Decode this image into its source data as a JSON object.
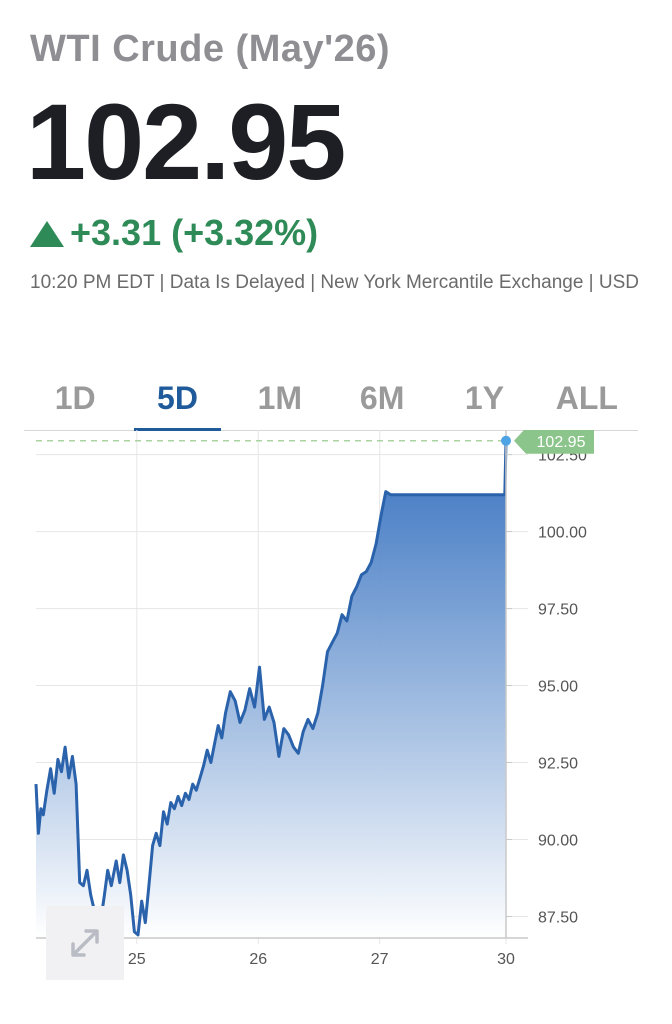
{
  "header": {
    "title": "WTI Crude (May'26)",
    "price": "102.95",
    "change": "+3.31",
    "change_pct": "(+3.32%)",
    "meta": "10:20 PM EDT | Data Is Delayed | New York Mercantile Exchange | USD"
  },
  "tabs": [
    {
      "label": "1D",
      "active": false
    },
    {
      "label": "5D",
      "active": true
    },
    {
      "label": "1M",
      "active": false
    },
    {
      "label": "6M",
      "active": false
    },
    {
      "label": "1Y",
      "active": false
    },
    {
      "label": "ALL",
      "active": false
    }
  ],
  "chart_data": {
    "type": "area",
    "last_price_label": "102.95",
    "ylim": [
      86.8,
      103.3
    ],
    "yticks": [
      87.5,
      90.0,
      92.5,
      95.0,
      97.5,
      100.0,
      102.5
    ],
    "ytick_labels": [
      "87.50",
      "90.00",
      "92.50",
      "95.00",
      "97.50",
      "100.00",
      "102.50"
    ],
    "xticks": [
      {
        "x": 0.83,
        "label": "25"
      },
      {
        "x": 1.83,
        "label": "26"
      },
      {
        "x": 2.83,
        "label": "27"
      },
      {
        "x": 3.87,
        "label": "30"
      }
    ],
    "xlim": [
      0,
      3.87
    ],
    "grid": true,
    "colors": {
      "line": "#2a62ab",
      "fill_top": "#2f6cbd",
      "fill_bottom": "#ffffff",
      "marker": "#4da3e3",
      "last_label_bg": "#8bc58b",
      "dashed": "#a9d3a0"
    },
    "series": [
      {
        "x": [
          0.0,
          0.02,
          0.04,
          0.06,
          0.09,
          0.12,
          0.15,
          0.18,
          0.21,
          0.24,
          0.27,
          0.3,
          0.33,
          0.36,
          0.39,
          0.42,
          0.45,
          0.48,
          0.5,
          0.53,
          0.56,
          0.59,
          0.62,
          0.66,
          0.69,
          0.72,
          0.75,
          0.78,
          0.81,
          0.84,
          0.87,
          0.9,
          0.93,
          0.96,
          0.99,
          1.02,
          1.05,
          1.08,
          1.11,
          1.14,
          1.17,
          1.2,
          1.23,
          1.26,
          1.29,
          1.32,
          1.35,
          1.38,
          1.41,
          1.44,
          1.47,
          1.5,
          1.53,
          1.56,
          1.6,
          1.64,
          1.68,
          1.72,
          1.76,
          1.8,
          1.84,
          1.88,
          1.92,
          1.96,
          2.0,
          2.04,
          2.08,
          2.12,
          2.16,
          2.2,
          2.24,
          2.28,
          2.32,
          2.36,
          2.4,
          2.44,
          2.48,
          2.52,
          2.56,
          2.6,
          2.64,
          2.68,
          2.72,
          2.76,
          2.8,
          2.84,
          2.88,
          2.92,
          2.96,
          3.0,
          3.04,
          3.08,
          3.12,
          3.16,
          3.2,
          3.24,
          3.28,
          3.32,
          3.36,
          3.4,
          3.44,
          3.48,
          3.52,
          3.56,
          3.6,
          3.64,
          3.68,
          3.72,
          3.76,
          3.8,
          3.84,
          3.86,
          3.87
        ],
        "y": [
          91.8,
          90.2,
          91.0,
          90.8,
          91.6,
          92.3,
          91.5,
          92.6,
          92.2,
          93.0,
          92.0,
          92.7,
          91.8,
          88.6,
          88.5,
          89.0,
          88.2,
          87.7,
          87.6,
          87.3,
          88.1,
          89.0,
          88.5,
          89.3,
          88.6,
          89.5,
          89.0,
          88.2,
          87.0,
          86.9,
          88.0,
          87.3,
          88.5,
          89.8,
          90.2,
          89.8,
          90.9,
          90.5,
          91.2,
          91.0,
          91.4,
          91.1,
          91.5,
          91.3,
          91.8,
          91.6,
          92.0,
          92.4,
          92.9,
          92.5,
          93.1,
          93.7,
          93.3,
          94.1,
          94.8,
          94.5,
          93.8,
          94.2,
          94.9,
          94.3,
          95.6,
          93.9,
          94.3,
          93.8,
          92.7,
          93.6,
          93.4,
          93.0,
          92.8,
          93.5,
          93.9,
          93.6,
          94.1,
          95.0,
          96.1,
          96.4,
          96.7,
          97.3,
          97.1,
          97.9,
          98.2,
          98.6,
          98.7,
          99.0,
          99.6,
          100.5,
          101.3,
          101.2,
          101.2,
          101.2,
          101.2,
          101.2,
          101.2,
          101.2,
          101.2,
          101.2,
          101.2,
          101.2,
          101.2,
          101.2,
          101.2,
          101.2,
          101.2,
          101.2,
          101.2,
          101.2,
          101.2,
          101.2,
          101.2,
          101.2,
          101.2,
          101.2,
          102.95
        ]
      }
    ]
  }
}
